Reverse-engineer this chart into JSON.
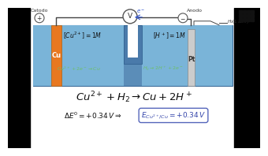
{
  "bg_color": "#ffffff",
  "tank_color": "#5b8db8",
  "tank_light_left": "#7ab4d8",
  "tank_light_right": "#7ab4d8",
  "cu_electrode_color": "#e87820",
  "salt_bridge_color": "#4a7aaa",
  "wire_color": "#444444",
  "text_color": "#222222",
  "green_text_color": "#6dbf6d",
  "blue_box_border": "#5566bb",
  "reaction_main": "$Cu^{2+} + H_2 \\rightarrow Cu + 2H^+$",
  "reaction_left": "$Cu^{2+}+2e^-\\rightarrow Cu$",
  "reaction_right": "$H_2\\rightarrow 2H^++2e^-$",
  "nernst_left": "$\\Delta E^0 = +0.34\\,V \\Rightarrow$",
  "nernst_right": "$E_{Cu^{2+}/Cu} = +0.34\\,V$",
  "label_cathode": "Catodo",
  "label_anode": "Anodo",
  "label_cu_conc": "$[Cu^{2+}]=1M$",
  "label_h_conc": "$[H^+]=1M$",
  "label_h2": "$H_2(1\\,atm)$",
  "label_cu": "Cu",
  "label_pt": "Pt",
  "label_v": "V",
  "label_e": "$e^-$"
}
